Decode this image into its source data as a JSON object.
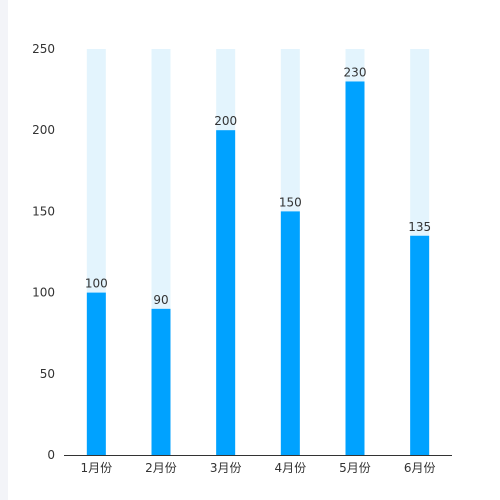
{
  "chart_data": {
    "type": "bar",
    "categories": [
      "1月份",
      "2月份",
      "3月份",
      "4月份",
      "5月份",
      "6月份"
    ],
    "values": [
      100,
      90,
      200,
      150,
      230,
      135
    ],
    "background_max": 250,
    "ylim": [
      0,
      250
    ],
    "yticks": [
      0,
      50,
      100,
      150,
      200,
      250
    ],
    "grid": false,
    "colors": {
      "bar": "#00a2ff",
      "background_bar": "#e3f4fd",
      "axis": "#333333",
      "text": "#333333"
    }
  }
}
